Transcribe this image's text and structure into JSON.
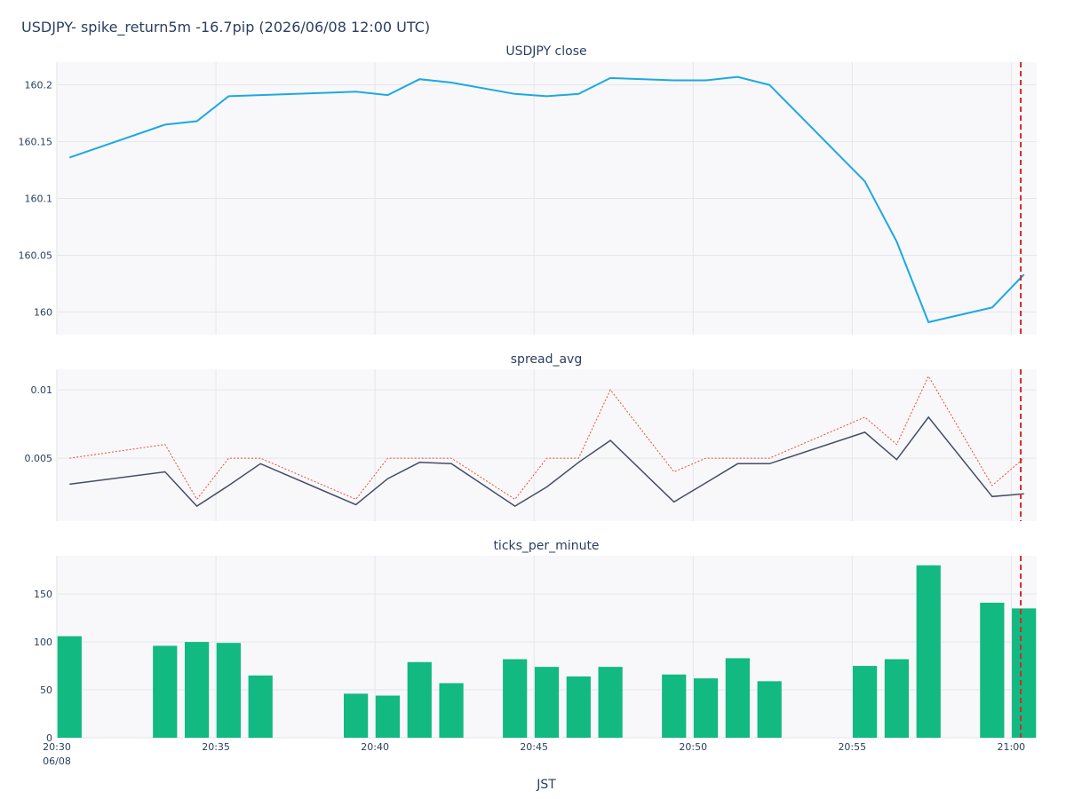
{
  "title": "USDJPY- spike_return5m -16.7pip (2026/06/08 12:00 UTC)",
  "xaxis_title": "JST",
  "x_ticks": [
    {
      "t": 0,
      "label": "20:30",
      "sublabel": "06/08"
    },
    {
      "t": 5,
      "label": "20:35",
      "sublabel": ""
    },
    {
      "t": 10,
      "label": "20:40",
      "sublabel": ""
    },
    {
      "t": 15,
      "label": "20:45",
      "sublabel": ""
    },
    {
      "t": 20,
      "label": "20:50",
      "sublabel": ""
    },
    {
      "t": 25,
      "label": "20:55",
      "sublabel": ""
    },
    {
      "t": 30,
      "label": "21:00",
      "sublabel": ""
    }
  ],
  "colors": {
    "close_line": "#1ca9e1",
    "spread_line": "#444e63",
    "spread_max": "#e74c3c",
    "bars": "#12b981",
    "event_line": "#d62728"
  },
  "chart_data": [
    {
      "type": "line",
      "title": "USDJPY close",
      "xunit": "minutes from 20:30 JST",
      "xlim": [
        0,
        30.8
      ],
      "ylim": [
        159.98,
        160.22
      ],
      "yticks": [
        160,
        160.05,
        160.1,
        160.15,
        160.2
      ],
      "ytick_labels": [
        "160",
        "160.05",
        "160.1",
        "160.15",
        "160.2"
      ],
      "event_x": 30.3,
      "series": [
        {
          "name": "",
          "x": [
            0.4,
            3.4,
            4.4,
            5.4,
            6.4,
            9.4,
            10.4,
            11.4,
            12.4,
            14.4,
            15.4,
            16.4,
            17.4,
            19.4,
            20.4,
            21.4,
            22.4,
            25.4,
            26.4,
            27.4,
            29.4,
            30.4
          ],
          "values": [
            160.136,
            160.165,
            160.168,
            160.19,
            160.191,
            160.194,
            160.191,
            160.205,
            160.202,
            160.192,
            160.19,
            160.192,
            160.206,
            160.204,
            160.204,
            160.207,
            160.2,
            160.115,
            160.062,
            159.991,
            160.004,
            160.033
          ]
        }
      ]
    },
    {
      "type": "line",
      "title": "spread_avg",
      "xunit": "minutes from 20:30 JST",
      "xlim": [
        0,
        30.8
      ],
      "ylim": [
        0.0004,
        0.0115
      ],
      "yticks": [
        0.005,
        0.01
      ],
      "ytick_labels": [
        "0.005",
        "0.01"
      ],
      "event_x": 30.3,
      "series": [
        {
          "name": "",
          "x": [
            0.4,
            3.4,
            4.4,
            5.4,
            6.4,
            9.4,
            10.4,
            11.4,
            12.4,
            14.4,
            15.4,
            16.4,
            17.4,
            19.4,
            20.4,
            21.4,
            22.4,
            25.4,
            26.4,
            27.4,
            29.4,
            30.4
          ],
          "values": [
            0.0031,
            0.004,
            0.0015,
            0.003,
            0.0046,
            0.0016,
            0.0035,
            0.0047,
            0.0046,
            0.0015,
            0.0029,
            0.0047,
            0.0063,
            0.0018,
            0.0032,
            0.0046,
            0.0046,
            0.0069,
            0.0049,
            0.008,
            0.0022,
            0.0024
          ]
        },
        {
          "name": "",
          "dashed": true,
          "x": [
            0.4,
            3.4,
            4.4,
            5.4,
            6.4,
            9.4,
            10.4,
            11.4,
            12.4,
            14.4,
            15.4,
            16.4,
            17.4,
            19.4,
            20.4,
            21.4,
            22.4,
            25.4,
            26.4,
            27.4,
            29.4,
            30.4
          ],
          "values": [
            0.005,
            0.006,
            0.002,
            0.005,
            0.005,
            0.002,
            0.005,
            0.005,
            0.005,
            0.002,
            0.005,
            0.005,
            0.01,
            0.004,
            0.005,
            0.005,
            0.005,
            0.008,
            0.006,
            0.011,
            0.003,
            0.005
          ]
        }
      ]
    },
    {
      "type": "bar",
      "title": "ticks_per_minute",
      "xunit": "minutes from 20:30 JST",
      "xlim": [
        0,
        30.8
      ],
      "ylim": [
        0,
        190
      ],
      "yticks": [
        0,
        50,
        100,
        150
      ],
      "ytick_labels": [
        "0",
        "50",
        "100",
        "150"
      ],
      "event_x": 30.3,
      "x": [
        0.4,
        3.4,
        4.4,
        5.4,
        6.4,
        9.4,
        10.4,
        11.4,
        12.4,
        14.4,
        15.4,
        16.4,
        17.4,
        19.4,
        20.4,
        21.4,
        22.4,
        25.4,
        26.4,
        27.4,
        29.4,
        30.4
      ],
      "values": [
        106,
        96,
        100,
        99,
        65,
        46,
        44,
        79,
        57,
        82,
        74,
        64,
        74,
        66,
        62,
        83,
        59,
        75,
        82,
        180,
        141,
        135
      ]
    }
  ]
}
